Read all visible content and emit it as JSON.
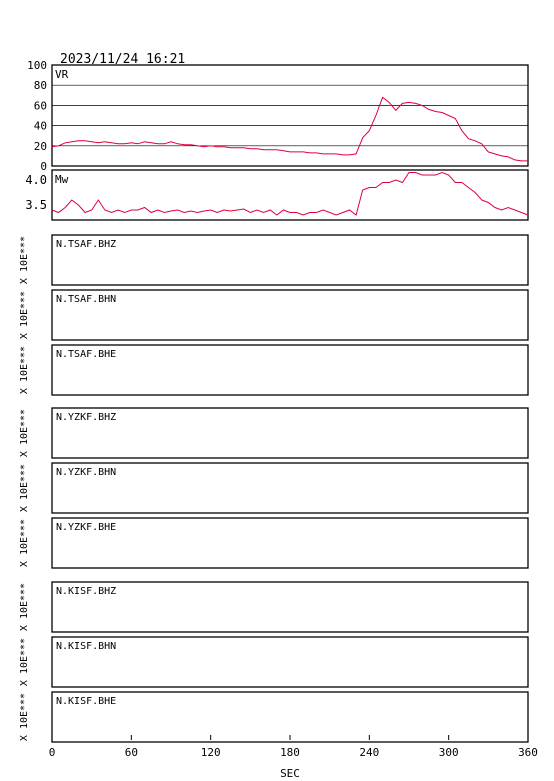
{
  "header": {
    "timestamp": "2023/11/24  16:21"
  },
  "chart_data": [
    {
      "type": "line",
      "label": "VR",
      "xlim": [
        0,
        360
      ],
      "ylim": [
        0,
        100
      ],
      "yticks": [
        "100",
        "80",
        "60",
        "40",
        "20",
        "0"
      ],
      "grid": true,
      "color": "#e0003c",
      "x": [
        0,
        5,
        10,
        15,
        20,
        25,
        30,
        35,
        40,
        45,
        50,
        55,
        60,
        65,
        70,
        75,
        80,
        85,
        90,
        95,
        100,
        105,
        110,
        115,
        120,
        125,
        130,
        135,
        140,
        145,
        150,
        155,
        160,
        165,
        170,
        175,
        180,
        185,
        190,
        195,
        200,
        205,
        210,
        215,
        220,
        225,
        230,
        235,
        240,
        245,
        250,
        255,
        260,
        265,
        270,
        275,
        280,
        285,
        290,
        295,
        300,
        305,
        310,
        315,
        320,
        325,
        330,
        335,
        340,
        345,
        350,
        355,
        360
      ],
      "values": [
        19,
        20,
        23,
        24,
        25,
        25,
        24,
        23,
        24,
        23,
        22,
        22,
        23,
        22,
        24,
        23,
        22,
        22,
        24,
        22,
        21,
        21,
        20,
        19,
        20,
        19,
        19,
        18,
        18,
        18,
        17,
        17,
        16,
        16,
        16,
        15,
        14,
        14,
        14,
        13,
        13,
        12,
        12,
        12,
        11,
        11,
        12,
        28,
        35,
        50,
        68,
        63,
        55,
        62,
        63,
        62,
        60,
        56,
        54,
        53,
        50,
        47,
        35,
        27,
        25,
        22,
        14,
        12,
        10,
        9,
        6,
        5,
        5
      ]
    },
    {
      "type": "line",
      "label": "Mw",
      "xlim": [
        0,
        360
      ],
      "ylim": [
        3.2,
        4.2
      ],
      "yticks": [
        "4.0",
        "3.5"
      ],
      "grid": false,
      "color": "#e0003c",
      "x": [
        0,
        5,
        10,
        15,
        20,
        25,
        30,
        35,
        40,
        45,
        50,
        55,
        60,
        65,
        70,
        75,
        80,
        85,
        90,
        95,
        100,
        105,
        110,
        115,
        120,
        125,
        130,
        135,
        140,
        145,
        150,
        155,
        160,
        165,
        170,
        175,
        180,
        185,
        190,
        195,
        200,
        205,
        210,
        215,
        220,
        225,
        230,
        235,
        240,
        245,
        250,
        255,
        260,
        265,
        270,
        275,
        280,
        285,
        290,
        295,
        300,
        305,
        310,
        315,
        320,
        325,
        330,
        335,
        340,
        345,
        350,
        355,
        360
      ],
      "values": [
        3.4,
        3.35,
        3.45,
        3.6,
        3.5,
        3.35,
        3.4,
        3.6,
        3.4,
        3.35,
        3.4,
        3.35,
        3.4,
        3.4,
        3.45,
        3.35,
        3.4,
        3.35,
        3.38,
        3.4,
        3.35,
        3.38,
        3.35,
        3.38,
        3.4,
        3.35,
        3.4,
        3.38,
        3.4,
        3.42,
        3.35,
        3.4,
        3.35,
        3.4,
        3.3,
        3.4,
        3.35,
        3.35,
        3.3,
        3.35,
        3.35,
        3.4,
        3.35,
        3.3,
        3.35,
        3.4,
        3.3,
        3.8,
        3.85,
        3.85,
        3.95,
        3.95,
        4.0,
        3.95,
        4.15,
        4.15,
        4.1,
        4.1,
        4.1,
        4.15,
        4.1,
        3.95,
        3.95,
        3.85,
        3.75,
        3.6,
        3.55,
        3.45,
        3.4,
        3.45,
        3.4,
        3.35,
        3.3
      ]
    }
  ],
  "empty_panel_ylabel": "X 10E***",
  "stations": [
    {
      "group": "TSAF",
      "channels": [
        "N.TSAF.BHZ",
        "N.TSAF.BHN",
        "N.TSAF.BHE"
      ]
    },
    {
      "group": "YZKF",
      "channels": [
        "N.YZKF.BHZ",
        "N.YZKF.BHN",
        "N.YZKF.BHE"
      ]
    },
    {
      "group": "KISF",
      "channels": [
        "N.KISF.BHZ",
        "N.KISF.BHN",
        "N.KISF.BHE"
      ]
    }
  ],
  "x_axis": {
    "ticks": [
      "0",
      "60",
      "120",
      "180",
      "240",
      "300",
      "360"
    ],
    "tick_values": [
      0,
      60,
      120,
      180,
      240,
      300,
      360
    ],
    "label": "SEC"
  }
}
